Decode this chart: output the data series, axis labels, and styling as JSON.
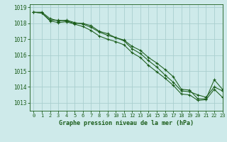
{
  "title": "Graphe pression niveau de la mer (hPa)",
  "bg_color": "#ceeaea",
  "grid_color": "#aacfcf",
  "line_color": "#1a5c1a",
  "xlim": [
    -0.5,
    23
  ],
  "ylim": [
    1012.5,
    1019.2
  ],
  "xtick_labels": [
    "0",
    "1",
    "2",
    "3",
    "4",
    "5",
    "6",
    "7",
    "8",
    "9",
    "10",
    "11",
    "12",
    "13",
    "14",
    "15",
    "16",
    "17",
    "18",
    "19",
    "20",
    "21",
    "22",
    "23"
  ],
  "xtick_pos": [
    0,
    1,
    2,
    3,
    4,
    5,
    6,
    7,
    8,
    9,
    10,
    11,
    12,
    13,
    14,
    15,
    16,
    17,
    18,
    19,
    20,
    21,
    22,
    23
  ],
  "yticks": [
    1013,
    1014,
    1015,
    1016,
    1017,
    1018,
    1019
  ],
  "series": [
    [
      1018.7,
      1018.7,
      1018.3,
      1018.15,
      1018.2,
      1018.05,
      1017.95,
      1017.75,
      1017.45,
      1017.25,
      1017.1,
      1016.95,
      1016.55,
      1016.3,
      1015.85,
      1015.5,
      1015.1,
      1014.65,
      1013.85,
      1013.8,
      1013.25,
      1013.25,
      1014.45,
      1013.85
    ],
    [
      1018.7,
      1018.65,
      1018.2,
      1018.2,
      1018.15,
      1018.0,
      1018.0,
      1017.85,
      1017.5,
      1017.35,
      1017.1,
      1016.9,
      1016.4,
      1016.1,
      1015.65,
      1015.25,
      1014.75,
      1014.3,
      1013.75,
      1013.7,
      1013.5,
      1013.35,
      1014.0,
      1013.75
    ],
    [
      1018.7,
      1018.65,
      1018.15,
      1018.05,
      1018.1,
      1017.95,
      1017.8,
      1017.55,
      1017.2,
      1017.0,
      1016.85,
      1016.65,
      1016.15,
      1015.85,
      1015.35,
      1014.95,
      1014.55,
      1014.1,
      1013.55,
      1013.5,
      1013.15,
      1013.2,
      1013.85,
      1013.35
    ]
  ]
}
